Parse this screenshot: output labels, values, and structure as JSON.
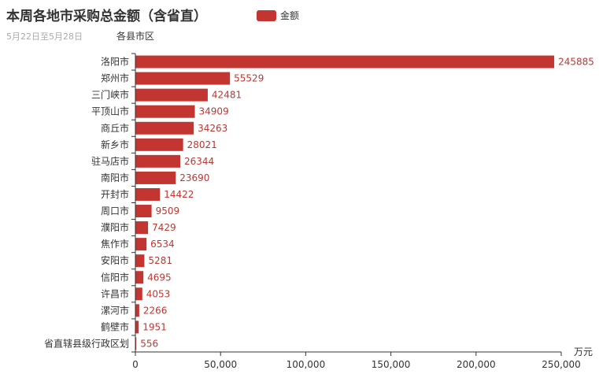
{
  "title": "本周各地市采购总金额（含省直）",
  "subtitle": "5月22日至5月28日",
  "legend_label": "金额",
  "colors": {
    "bar": "#c23531",
    "axis": "#333333",
    "label": "#c23531",
    "text": "#333333"
  },
  "chart_data": {
    "type": "bar",
    "orientation": "horizontal",
    "xlabel": "万元",
    "ylabel": "各县市区",
    "xlim": [
      0,
      250000
    ],
    "xticks": [
      0,
      50000,
      100000,
      150000,
      200000,
      250000
    ],
    "xtick_labels": [
      "0",
      "50,000",
      "100,000",
      "150,000",
      "200,000",
      "250,000"
    ],
    "grid": false,
    "legend_position": "top",
    "categories": [
      "洛阳市",
      "郑州市",
      "三门峡市",
      "平顶山市",
      "商丘市",
      "新乡市",
      "驻马店市",
      "南阳市",
      "开封市",
      "周口市",
      "濮阳市",
      "焦作市",
      "安阳市",
      "信阳市",
      "许昌市",
      "漯河市",
      "鹤壁市",
      "省直辖县级行政区划"
    ],
    "series": [
      {
        "name": "金额",
        "values": [
          245885,
          55529,
          42481,
          34909,
          34263,
          28021,
          26344,
          23690,
          14422,
          9509,
          7429,
          6534,
          5281,
          4695,
          4053,
          2266,
          1951,
          556
        ]
      }
    ]
  }
}
